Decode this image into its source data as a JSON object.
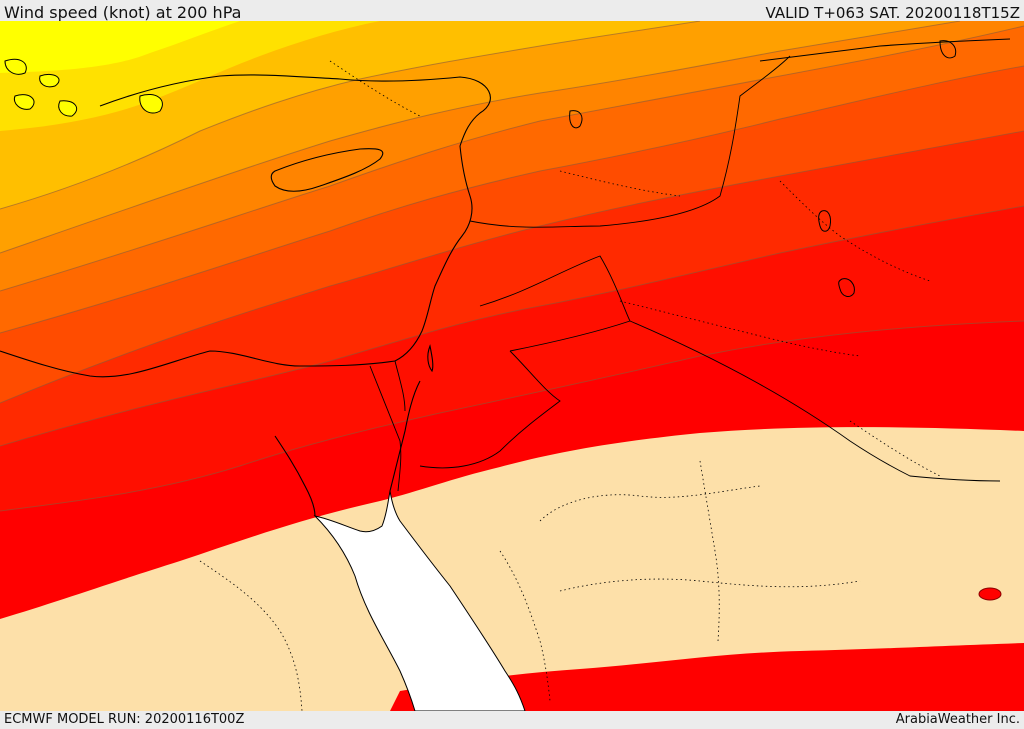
{
  "header": {
    "title": "Wind speed (knot) at 200 hPa",
    "valid": "VALID T+063 SAT. 20200118T15Z"
  },
  "footer": {
    "model_run": "ECMWF MODEL RUN: 20200116T00Z",
    "credit": "ArabiaWeather Inc."
  },
  "map": {
    "region": "Eastern Mediterranean and Middle East",
    "colors": {
      "band_1": "#ffff00",
      "band_2": "#ffe100",
      "band_3": "#ffbf00",
      "band_4": "#ffa000",
      "band_5": "#ff8400",
      "band_6": "#ff6900",
      "band_7": "#ff4c00",
      "band_8": "#ff2a00",
      "band_9": "#ff0f00",
      "band_10": "#ff0000",
      "low_wind": "#fde0a9",
      "sea": "#ffffff",
      "coastline": "#000000",
      "contour_line": "#8a5a3a"
    }
  }
}
